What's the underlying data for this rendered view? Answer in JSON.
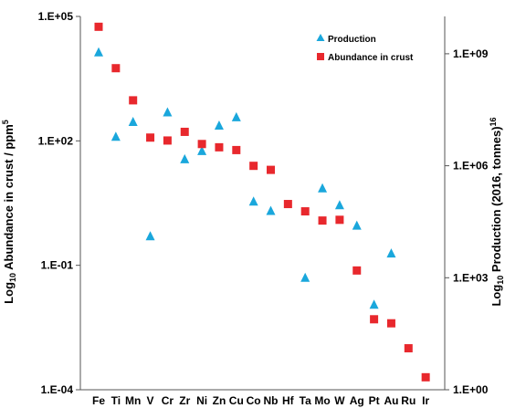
{
  "chart_data": {
    "type": "scatter",
    "categories": [
      "Fe",
      "Ti",
      "Mn",
      "V",
      "Cr",
      "Zr",
      "Ni",
      "Zn",
      "Cu",
      "Co",
      "Nb",
      "Hf",
      "Ta",
      "Mo",
      "W",
      "Ag",
      "Pt",
      "Au",
      "Ru",
      "Ir"
    ],
    "left_axis": {
      "label_prefix": "Log",
      "label_sub": "10",
      "label_main": " Abundance  in crust / ppm",
      "label_sup": "5",
      "log_scale": true,
      "ylim": [
        0.0001,
        100000
      ],
      "ticks": [
        {
          "value": 0.0001,
          "label": "1.E-04"
        },
        {
          "value": 0.1,
          "label": "1.E-01"
        },
        {
          "value": 100,
          "label": "1.E+02"
        },
        {
          "value": 100000,
          "label": "1.E+05"
        }
      ]
    },
    "right_axis": {
      "label_prefix": "Log",
      "label_sub": "10",
      "label_main": " Production (2016, tonnes)",
      "label_sup": "16",
      "log_scale": true,
      "ylim": [
        1,
        10000000000
      ],
      "ticks": [
        {
          "value": 1,
          "label": "1.E+00"
        },
        {
          "value": 1000,
          "label": "1.E+03"
        },
        {
          "value": 1000000,
          "label": "1.E+06"
        },
        {
          "value": 1000000000,
          "label": "1.E+09"
        }
      ]
    },
    "series": [
      {
        "name": "Production",
        "axis": "right",
        "marker": "triangle",
        "color": "#1aa7dc",
        "values": [
          1100000000,
          6000000,
          15000000,
          13000,
          27000000,
          1500000,
          2500000,
          12000000,
          20000000,
          110000,
          62000,
          null,
          1000,
          250000,
          88000,
          25000,
          190,
          4500,
          null,
          null
        ]
      },
      {
        "name": "Abundance in crust",
        "axis": "left",
        "marker": "square",
        "color": "#e8282d",
        "values": [
          56300,
          5650,
          950,
          120,
          102,
          165,
          84,
          70,
          60,
          25,
          20,
          3,
          2,
          1.2,
          1.25,
          0.075,
          0.005,
          0.004,
          0.001,
          0.0002
        ]
      }
    ],
    "legend_position": "top-right",
    "grid": false
  }
}
